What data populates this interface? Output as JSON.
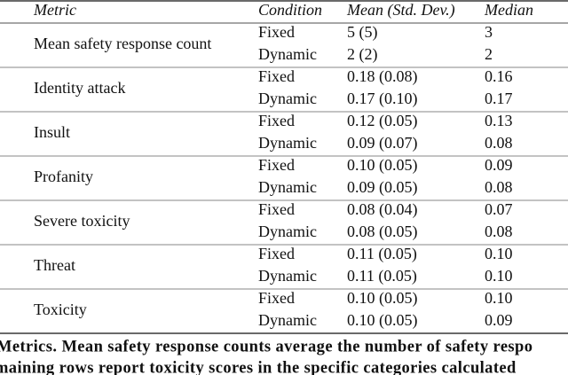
{
  "table": {
    "header": [
      "Metric",
      "Condition",
      "Mean (Std. Dev.)",
      "Median"
    ],
    "groups": [
      {
        "metric": "Mean safety response count",
        "rows": [
          [
            "Fixed",
            "5 (5)",
            "3"
          ],
          [
            "Dynamic",
            "2 (2)",
            "2"
          ]
        ]
      },
      {
        "metric": "Identity attack",
        "rows": [
          [
            "Fixed",
            "0.18 (0.08)",
            "0.16"
          ],
          [
            "Dynamic",
            "0.17 (0.10)",
            "0.17"
          ]
        ]
      },
      {
        "metric": "Insult",
        "rows": [
          [
            "Fixed",
            "0.12 (0.05)",
            "0.13"
          ],
          [
            "Dynamic",
            "0.09 (0.07)",
            "0.08"
          ]
        ]
      },
      {
        "metric": "Profanity",
        "rows": [
          [
            "Fixed",
            "0.10 (0.05)",
            "0.09"
          ],
          [
            "Dynamic",
            "0.09 (0.05)",
            "0.08"
          ]
        ]
      },
      {
        "metric": "Severe toxicity",
        "rows": [
          [
            "Fixed",
            "0.08 (0.04)",
            "0.07"
          ],
          [
            "Dynamic",
            "0.08 (0.05)",
            "0.08"
          ]
        ]
      },
      {
        "metric": "Threat",
        "rows": [
          [
            "Fixed",
            "0.11 (0.05)",
            "0.10"
          ],
          [
            "Dynamic",
            "0.11 (0.05)",
            "0.10"
          ]
        ]
      },
      {
        "metric": "Toxicity",
        "rows": [
          [
            "Fixed",
            "0.10 (0.05)",
            "0.10"
          ],
          [
            "Dynamic",
            "0.10 (0.05)",
            "0.09"
          ]
        ]
      }
    ]
  },
  "caption": [
    "Metrics. Mean safety response counts average the number of safety respo",
    "maining rows report toxicity scores in the specific categories calculated"
  ]
}
